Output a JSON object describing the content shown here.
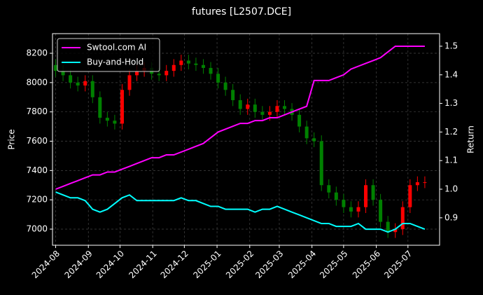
{
  "chart_data": {
    "type": "candlestick",
    "title": "futures [L2507.DCE]",
    "y_label": "Price",
    "y2_label": "Return",
    "x": [
      0,
      7,
      14,
      21,
      28,
      35,
      42,
      49,
      56,
      63,
      70,
      77,
      84,
      91,
      98,
      105,
      112,
      119,
      126,
      133,
      140,
      147,
      154,
      161,
      168,
      175,
      182,
      189,
      196,
      203,
      210,
      217,
      224,
      231,
      238,
      245,
      252,
      259,
      266,
      273,
      280,
      287,
      294,
      301,
      308,
      315,
      322,
      329,
      336,
      343,
      350
    ],
    "open": [
      8120,
      8080,
      8050,
      8000,
      7980,
      8010,
      7900,
      7760,
      7740,
      7720,
      7950,
      8050,
      8080,
      8100,
      8060,
      8050,
      8080,
      8120,
      8150,
      8130,
      8120,
      8100,
      8060,
      8000,
      7950,
      7880,
      7820,
      7850,
      7800,
      7780,
      7800,
      7840,
      7820,
      7780,
      7700,
      7620,
      7600,
      7300,
      7250,
      7200,
      7150,
      7120,
      7150,
      7300,
      7200,
      7050,
      6980,
      7000,
      7150,
      7300,
      7320
    ],
    "high": [
      8160,
      8120,
      8090,
      8040,
      8050,
      8050,
      7940,
      7800,
      7780,
      7990,
      8090,
      8120,
      8140,
      8140,
      8100,
      8120,
      8160,
      8190,
      8190,
      8170,
      8160,
      8140,
      8100,
      8040,
      7990,
      7920,
      7890,
      7890,
      7840,
      7840,
      7880,
      7880,
      7860,
      7820,
      7740,
      7660,
      7640,
      7340,
      7290,
      7240,
      7190,
      7190,
      7340,
      7340,
      7240,
      7090,
      7040,
      7190,
      7340,
      7360,
      7360
    ],
    "low": [
      8040,
      8010,
      7960,
      7940,
      7940,
      7860,
      7720,
      7700,
      7680,
      7680,
      7910,
      8010,
      8040,
      8020,
      8010,
      8010,
      8040,
      8080,
      8090,
      8080,
      8060,
      8020,
      7960,
      7910,
      7840,
      7780,
      7780,
      7760,
      7740,
      7740,
      7760,
      7780,
      7740,
      7660,
      7580,
      7560,
      7260,
      7210,
      7160,
      7110,
      7080,
      7080,
      7110,
      7160,
      7010,
      6940,
      6940,
      6960,
      7110,
      7260,
      7280
    ],
    "close": [
      8080,
      8050,
      8000,
      7980,
      8010,
      7900,
      7760,
      7740,
      7720,
      7950,
      8050,
      8080,
      8100,
      8060,
      8050,
      8080,
      8120,
      8150,
      8130,
      8120,
      8100,
      8060,
      8000,
      7950,
      7880,
      7820,
      7850,
      7800,
      7780,
      7800,
      7840,
      7820,
      7780,
      7700,
      7620,
      7600,
      7300,
      7250,
      7200,
      7150,
      7120,
      7150,
      7300,
      7200,
      7050,
      6980,
      7000,
      7150,
      7300,
      7320,
      7320
    ],
    "up_color": "#ff0000",
    "down_color": "#008000",
    "series": [
      {
        "name": "Swtool.com AI",
        "color": "#ff00ff",
        "axis": "y2",
        "values": [
          1.0,
          1.01,
          1.02,
          1.03,
          1.04,
          1.05,
          1.05,
          1.06,
          1.06,
          1.07,
          1.08,
          1.09,
          1.1,
          1.11,
          1.11,
          1.12,
          1.12,
          1.13,
          1.14,
          1.15,
          1.16,
          1.18,
          1.2,
          1.21,
          1.22,
          1.23,
          1.23,
          1.24,
          1.24,
          1.25,
          1.25,
          1.26,
          1.27,
          1.28,
          1.29,
          1.38,
          1.38,
          1.38,
          1.39,
          1.4,
          1.42,
          1.43,
          1.44,
          1.45,
          1.46,
          1.48,
          1.5,
          1.5,
          1.5,
          1.5,
          1.5
        ]
      },
      {
        "name": "Buy-and-Hold",
        "color": "#00ffff",
        "axis": "y2",
        "values": [
          0.99,
          0.98,
          0.97,
          0.97,
          0.96,
          0.93,
          0.92,
          0.93,
          0.95,
          0.97,
          0.98,
          0.96,
          0.96,
          0.96,
          0.96,
          0.96,
          0.96,
          0.97,
          0.96,
          0.96,
          0.95,
          0.94,
          0.94,
          0.93,
          0.93,
          0.93,
          0.93,
          0.92,
          0.93,
          0.93,
          0.94,
          0.93,
          0.92,
          0.91,
          0.9,
          0.89,
          0.88,
          0.88,
          0.87,
          0.87,
          0.87,
          0.88,
          0.86,
          0.86,
          0.86,
          0.85,
          0.86,
          0.88,
          0.88,
          0.87,
          0.86
        ]
      }
    ],
    "xlim": [
      -3,
      364
    ],
    "xticks": [
      {
        "value": 0,
        "label": "2024-08"
      },
      {
        "value": 31,
        "label": "2024-09"
      },
      {
        "value": 61,
        "label": "2024-10"
      },
      {
        "value": 92,
        "label": "2024-11"
      },
      {
        "value": 122,
        "label": "2024-12"
      },
      {
        "value": 153,
        "label": "2025-01"
      },
      {
        "value": 184,
        "label": "2025-02"
      },
      {
        "value": 212,
        "label": "2025-03"
      },
      {
        "value": 243,
        "label": "2025-04"
      },
      {
        "value": 273,
        "label": "2025-05"
      },
      {
        "value": 304,
        "label": "2025-06"
      },
      {
        "value": 334,
        "label": "2025-07"
      }
    ],
    "ylim": [
      6890,
      8334
    ],
    "yticks": [
      7000,
      7200,
      7400,
      7600,
      7800,
      8000,
      8200
    ],
    "y2lim": [
      0.804,
      1.544
    ],
    "y2ticks": [
      0.9,
      {
        "value": 1,
        "label": "1.0"
      },
      1.1,
      1.2,
      1.3,
      1.4,
      1.5
    ],
    "grid": true,
    "legend": "upper left"
  }
}
